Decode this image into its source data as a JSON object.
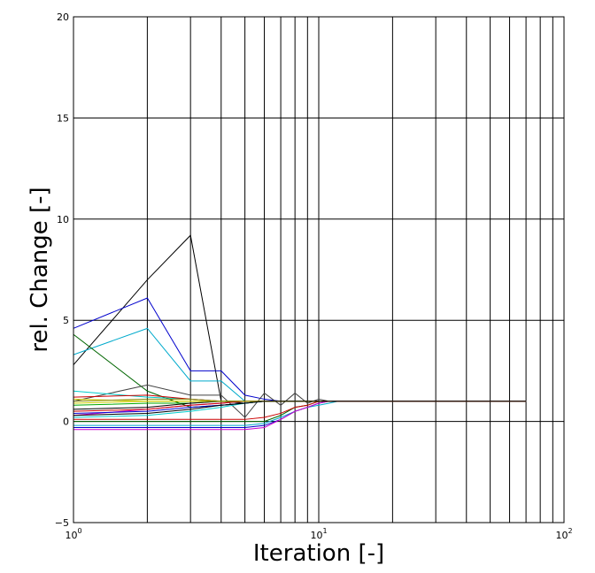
{
  "chart_data": {
    "type": "line",
    "title": "",
    "xlabel": "Iteration [-]",
    "ylabel": "rel. Change [-]",
    "xscale": "log",
    "xlim": [
      1,
      100
    ],
    "ylim": [
      -5,
      20
    ],
    "grid": true,
    "x_tick_labels": [
      {
        "base": "10",
        "exp": "0"
      },
      {
        "base": "10",
        "exp": "1"
      },
      {
        "base": "10",
        "exp": "2"
      }
    ],
    "y_ticks": [
      -5,
      0,
      5,
      10,
      15,
      20
    ],
    "y_tick_labels": [
      "−5",
      "0",
      "5",
      "10",
      "15",
      "20"
    ],
    "x": [
      1,
      2,
      3,
      4,
      5,
      6,
      7,
      8,
      9,
      10,
      11,
      12,
      14,
      20,
      30,
      40,
      50,
      60,
      70
    ],
    "series": [
      {
        "color": "#000000",
        "values": [
          2.8,
          7.0,
          9.2,
          1.0,
          0.9,
          1.0,
          1.0,
          1.0,
          1.0,
          1.0,
          1.0,
          1.0,
          1.0,
          1.0,
          1.0,
          1.0,
          1.0,
          1.0,
          1.0
        ]
      },
      {
        "color": "#0000cc",
        "values": [
          4.6,
          6.1,
          2.5,
          2.5,
          1.3,
          1.1,
          1.0,
          1.0,
          1.0,
          1.0,
          1.0,
          1.0,
          1.0,
          1.0,
          1.0,
          1.0,
          1.0,
          1.0,
          1.0
        ]
      },
      {
        "color": "#00aacc",
        "values": [
          3.3,
          4.6,
          2.0,
          2.0,
          1.0,
          1.0,
          1.0,
          1.0,
          1.0,
          1.0,
          1.0,
          1.0,
          1.0,
          1.0,
          1.0,
          1.0,
          1.0,
          1.0,
          1.0
        ]
      },
      {
        "color": "#006600",
        "values": [
          4.3,
          1.5,
          0.7,
          0.8,
          0.9,
          1.0,
          1.0,
          1.0,
          1.0,
          1.0,
          1.0,
          1.0,
          1.0,
          1.0,
          1.0,
          1.0,
          1.0,
          1.0,
          1.0
        ]
      },
      {
        "color": "#444444",
        "values": [
          1.0,
          1.8,
          1.3,
          1.3,
          0.2,
          1.4,
          0.8,
          1.4,
          0.9,
          1.1,
          1.0,
          1.0,
          1.0,
          1.0,
          1.0,
          1.0,
          1.0,
          1.0,
          1.0
        ]
      },
      {
        "color": "#00cccc",
        "values": [
          1.5,
          1.2,
          1.1,
          1.0,
          1.0,
          1.0,
          1.0,
          1.0,
          1.0,
          1.0,
          1.0,
          1.0,
          1.0,
          1.0,
          1.0,
          1.0,
          1.0,
          1.0,
          1.0
        ]
      },
      {
        "color": "#cc0000",
        "values": [
          1.2,
          1.3,
          1.1,
          1.0,
          1.0,
          1.0,
          1.0,
          1.0,
          1.0,
          1.0,
          1.0,
          1.0,
          1.0,
          1.0,
          1.0,
          1.0,
          1.0,
          1.0,
          1.0
        ]
      },
      {
        "color": "#cccc00",
        "values": [
          1.1,
          1.0,
          1.0,
          1.0,
          1.0,
          1.0,
          1.0,
          1.0,
          1.0,
          1.0,
          1.0,
          1.0,
          1.0,
          1.0,
          1.0,
          1.0,
          1.0,
          1.0,
          1.0
        ]
      },
      {
        "color": "#cc00cc",
        "values": [
          0.3,
          0.6,
          0.8,
          0.9,
          1.0,
          1.0,
          1.0,
          1.0,
          1.0,
          1.0,
          1.0,
          1.0,
          1.0,
          1.0,
          1.0,
          1.0,
          1.0,
          1.0,
          1.0
        ]
      },
      {
        "color": "#0000cc",
        "values": [
          0.4,
          0.5,
          0.7,
          0.8,
          0.9,
          1.0,
          1.0,
          1.0,
          1.0,
          1.0,
          1.0,
          1.0,
          1.0,
          1.0,
          1.0,
          1.0,
          1.0,
          1.0,
          1.0
        ]
      },
      {
        "color": "#00aa00",
        "values": [
          0.8,
          0.9,
          0.9,
          1.0,
          1.0,
          1.0,
          1.0,
          1.0,
          1.0,
          1.0,
          1.0,
          1.0,
          1.0,
          1.0,
          1.0,
          1.0,
          1.0,
          1.0,
          1.0
        ]
      },
      {
        "color": "#000000",
        "values": [
          0.6,
          0.7,
          0.9,
          1.0,
          1.0,
          1.0,
          1.0,
          1.0,
          1.0,
          1.0,
          1.0,
          1.0,
          1.0,
          1.0,
          1.0,
          1.0,
          1.0,
          1.0,
          1.0
        ]
      },
      {
        "color": "#00cccc",
        "values": [
          0.2,
          0.3,
          0.5,
          0.7,
          0.9,
          1.0,
          1.0,
          1.0,
          1.0,
          1.0,
          1.0,
          1.0,
          1.0,
          1.0,
          1.0,
          1.0,
          1.0,
          1.0,
          1.0
        ]
      },
      {
        "color": "#cc0000",
        "values": [
          0.5,
          0.6,
          0.8,
          0.9,
          1.0,
          1.0,
          1.0,
          1.0,
          1.0,
          1.0,
          1.0,
          1.0,
          1.0,
          1.0,
          1.0,
          1.0,
          1.0,
          1.0,
          1.0
        ]
      },
      {
        "color": "#cccc00",
        "values": [
          0.9,
          1.0,
          1.0,
          1.0,
          1.0,
          1.0,
          1.0,
          1.0,
          1.0,
          1.0,
          1.0,
          1.0,
          1.0,
          1.0,
          1.0,
          1.0,
          1.0,
          1.0,
          1.0
        ]
      },
      {
        "color": "#006600",
        "values": [
          0.0,
          0.0,
          0.0,
          0.0,
          0.0,
          0.0,
          0.3,
          0.7,
          0.8,
          1.0,
          1.0,
          1.0,
          1.0,
          1.0,
          1.0,
          1.0,
          1.0,
          1.0,
          1.0
        ]
      },
      {
        "color": "#00aacc",
        "values": [
          -0.2,
          -0.2,
          -0.2,
          -0.2,
          -0.2,
          -0.1,
          0.2,
          0.5,
          0.7,
          0.8,
          0.9,
          1.0,
          1.0,
          1.0,
          1.0,
          1.0,
          1.0,
          1.0,
          1.0
        ]
      },
      {
        "color": "#0000cc",
        "values": [
          -0.3,
          -0.3,
          -0.3,
          -0.3,
          -0.3,
          -0.2,
          0.1,
          0.5,
          0.7,
          0.9,
          1.0,
          1.0,
          1.0,
          1.0,
          1.0,
          1.0,
          1.0,
          1.0,
          1.0
        ]
      },
      {
        "color": "#cc00cc",
        "values": [
          -0.4,
          -0.4,
          -0.4,
          -0.4,
          -0.4,
          -0.3,
          0.1,
          0.5,
          0.7,
          0.9,
          1.0,
          1.0,
          1.0,
          1.0,
          1.0,
          1.0,
          1.0,
          1.0,
          1.0
        ]
      },
      {
        "color": "#cc0000",
        "values": [
          0.1,
          0.1,
          0.1,
          0.1,
          0.1,
          0.2,
          0.4,
          0.7,
          0.8,
          1.0,
          1.0,
          1.0,
          1.0,
          1.0,
          1.0,
          1.0,
          1.0,
          1.0,
          1.0
        ]
      },
      {
        "color": "#888800",
        "values": [
          1.0,
          1.1,
          1.1,
          1.0,
          1.0,
          1.0,
          1.0,
          1.0,
          1.0,
          1.0,
          1.0,
          1.0,
          1.0,
          1.0,
          1.0,
          1.0,
          1.0,
          1.0,
          1.0
        ]
      },
      {
        "color": "#000000",
        "values": [
          0.3,
          0.4,
          0.6,
          0.8,
          0.9,
          1.0,
          1.0,
          1.0,
          1.0,
          1.0,
          1.0,
          1.0,
          1.0,
          1.0,
          1.0,
          1.0,
          1.0,
          1.0,
          1.0
        ]
      }
    ]
  }
}
